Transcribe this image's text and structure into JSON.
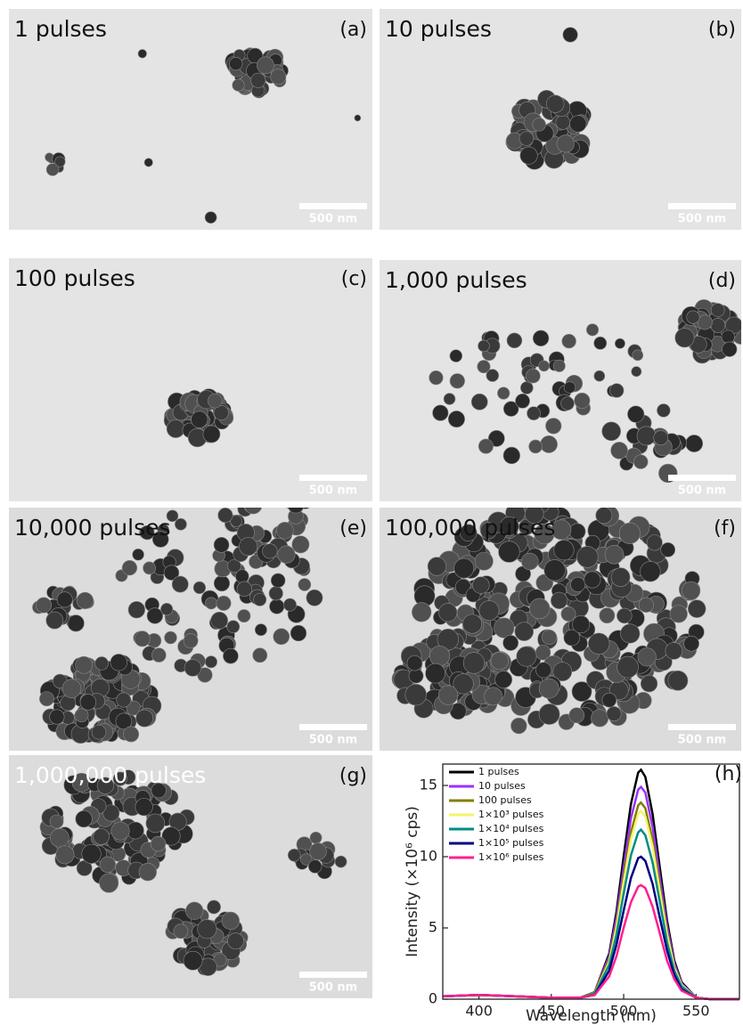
{
  "panels": [
    {
      "caption": "1 pulses",
      "label": "(a)",
      "scale": "500 nm"
    },
    {
      "caption": "10 pulses",
      "label": "(b)",
      "scale": "500 nm"
    },
    {
      "caption": "100 pulses",
      "label": "(c)",
      "scale": "500 nm"
    },
    {
      "caption": "1,000 pulses",
      "label": "(d)",
      "scale": "500 nm"
    },
    {
      "caption": "10,000 pulses",
      "label": "(e)",
      "scale": "500 nm"
    },
    {
      "caption": "100,000 pulses",
      "label": "(f)",
      "scale": "500 nm"
    },
    {
      "caption": "1,000,000 pulses",
      "label": "(g)",
      "scale": "500 nm"
    }
  ],
  "chart_data": {
    "type": "line",
    "panel_label": "(h)",
    "x_label": "Wavelength (nm)",
    "y_label": "Intensity (×10⁶ cps)",
    "x": [
      375,
      400,
      425,
      450,
      470,
      480,
      490,
      495,
      500,
      505,
      510,
      512,
      515,
      520,
      525,
      530,
      535,
      540,
      550,
      560,
      580
    ],
    "series": [
      {
        "name": "1 pulses",
        "color": "#000000",
        "values": [
          0.2,
          0.3,
          0.2,
          0.1,
          0.1,
          0.5,
          3.2,
          6.1,
          10.0,
          13.7,
          15.9,
          16.1,
          15.6,
          13.0,
          9.2,
          5.5,
          2.7,
          1.2,
          0.1,
          0.0,
          0.0
        ]
      },
      {
        "name": "10 pulses",
        "color": "#9b30ff",
        "values": [
          0.2,
          0.3,
          0.2,
          0.1,
          0.1,
          0.5,
          3.0,
          5.7,
          9.2,
          12.7,
          14.7,
          14.9,
          14.5,
          12.1,
          8.5,
          5.1,
          2.5,
          1.1,
          0.1,
          0.0,
          0.0
        ]
      },
      {
        "name": "100 pulses",
        "color": "#808000",
        "values": [
          0.2,
          0.3,
          0.2,
          0.1,
          0.1,
          0.5,
          2.8,
          5.2,
          8.6,
          11.7,
          13.6,
          13.8,
          13.4,
          11.2,
          7.9,
          4.7,
          2.3,
          1.0,
          0.1,
          0.0,
          0.0
        ]
      },
      {
        "name": "1×10³ pulses",
        "color": "#f5f56a",
        "values": [
          0.2,
          0.3,
          0.2,
          0.1,
          0.1,
          0.4,
          2.6,
          5.0,
          8.2,
          11.2,
          13.0,
          13.2,
          12.8,
          10.7,
          7.5,
          4.5,
          2.2,
          1.0,
          0.1,
          0.0,
          0.0
        ]
      },
      {
        "name": "1×10⁴ pulses",
        "color": "#008b8b",
        "values": [
          0.2,
          0.3,
          0.2,
          0.1,
          0.1,
          0.4,
          2.4,
          4.5,
          7.4,
          10.1,
          11.7,
          11.9,
          11.5,
          9.6,
          6.8,
          4.0,
          2.0,
          0.9,
          0.1,
          0.0,
          0.0
        ]
      },
      {
        "name": "1×10⁵ pulses",
        "color": "#000080",
        "values": [
          0.2,
          0.3,
          0.2,
          0.1,
          0.1,
          0.3,
          2.0,
          3.8,
          6.2,
          8.5,
          9.9,
          10.0,
          9.7,
          8.1,
          5.7,
          3.4,
          1.7,
          0.7,
          0.1,
          0.0,
          0.0
        ]
      },
      {
        "name": "1×10⁶ pulses",
        "color": "#ff1f8f",
        "values": [
          0.2,
          0.3,
          0.2,
          0.1,
          0.1,
          0.3,
          1.6,
          3.0,
          5.0,
          6.8,
          7.9,
          8.0,
          7.8,
          6.5,
          4.6,
          2.7,
          1.4,
          0.6,
          0.1,
          0.0,
          0.0
        ]
      }
    ],
    "xlim": [
      375,
      580
    ],
    "xticks": [
      400,
      450,
      500,
      550
    ],
    "ylim": [
      0,
      16.5
    ],
    "yticks": [
      0,
      5,
      10,
      15
    ]
  }
}
